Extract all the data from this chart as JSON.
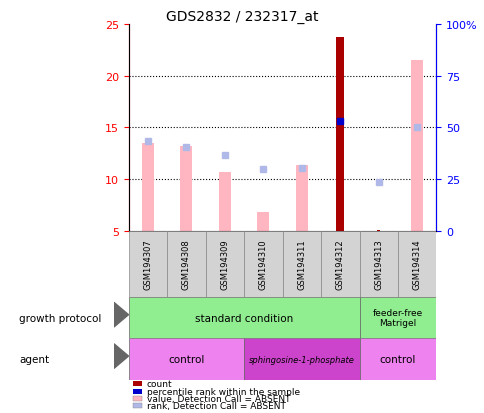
{
  "title": "GDS2832 / 232317_at",
  "samples": [
    "GSM194307",
    "GSM194308",
    "GSM194309",
    "GSM194310",
    "GSM194311",
    "GSM194312",
    "GSM194313",
    "GSM194314"
  ],
  "value_absent": [
    13.5,
    13.2,
    10.7,
    6.8,
    11.4,
    null,
    null,
    21.5
  ],
  "rank_absent": [
    13.7,
    13.1,
    12.3,
    11.0,
    11.1,
    null,
    null,
    15.0
  ],
  "count_red": [
    null,
    null,
    null,
    null,
    null,
    23.7,
    null,
    null
  ],
  "rank_present": [
    null,
    null,
    null,
    null,
    null,
    15.6,
    null,
    null
  ],
  "count_small": [
    null,
    null,
    null,
    null,
    null,
    null,
    5.1,
    null
  ],
  "rank_small": [
    null,
    null,
    null,
    null,
    null,
    null,
    9.7,
    null
  ],
  "ylim_left": [
    5,
    25
  ],
  "ylim_right": [
    0,
    100
  ],
  "yticks_left": [
    5,
    10,
    15,
    20,
    25
  ],
  "yticks_right": [
    0,
    25,
    50,
    75,
    100
  ],
  "yticklabels_right": [
    "0",
    "25",
    "50",
    "75",
    "100%"
  ],
  "color_count": "#aa0000",
  "color_rank_present": "#0000cc",
  "color_value_absent": "#ffb6c1",
  "color_rank_absent": "#b0b8e8",
  "color_sample_bg": "#d3d3d3",
  "color_gp_green": "#90ee90",
  "color_agent_light": "#ee82ee",
  "color_agent_dark": "#cc44cc",
  "legend_items": [
    {
      "color": "#aa0000",
      "label": "count"
    },
    {
      "color": "#0000cc",
      "label": "percentile rank within the sample"
    },
    {
      "color": "#ffb6c1",
      "label": "value, Detection Call = ABSENT"
    },
    {
      "color": "#b0b8e8",
      "label": "rank, Detection Call = ABSENT"
    }
  ],
  "bar_width": 0.3,
  "red_bar_width": 0.22
}
